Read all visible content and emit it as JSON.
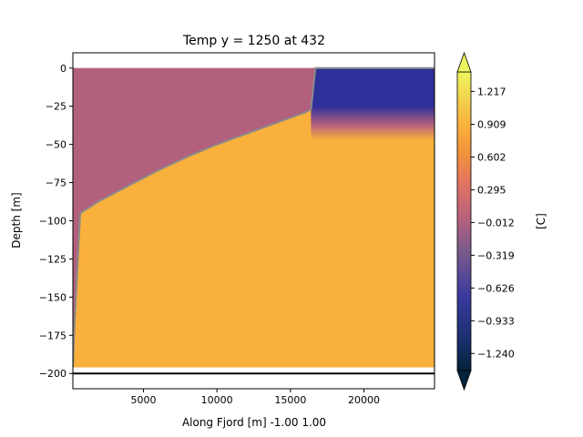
{
  "chart_data": {
    "type": "heatmap",
    "title": "Temp y = 1250 at 432",
    "xlabel": "Along Fjord [m] -1.00 1.00",
    "ylabel": "Depth [m]",
    "xlim": [
      200,
      24800
    ],
    "ylim": [
      -210,
      10
    ],
    "x_ticks": [
      5000,
      10000,
      15000,
      20000
    ],
    "x_tick_labels": [
      "5000",
      "10000",
      "15000",
      "20000"
    ],
    "y_ticks": [
      0,
      -25,
      -50,
      -75,
      -100,
      -125,
      -150,
      -175,
      -200
    ],
    "y_tick_labels": [
      "0",
      "−25",
      "−50",
      "−75",
      "−100",
      "−125",
      "−150",
      "−175",
      "−200"
    ],
    "field": {
      "x_range": [
        200,
        24800
      ],
      "depth_range": [
        0,
        -196
      ],
      "fresh_value": -0.1,
      "shelf_value": -0.93,
      "deep_value": 1.0,
      "thermocline_depth": -37,
      "thermocline_width": 10
    },
    "ice_profile": {
      "x": [
        200,
        300,
        700,
        2000,
        4000,
        6000,
        8000,
        10000,
        12000,
        14000,
        16000,
        16400,
        16700,
        24800
      ],
      "depth": [
        -196,
        -170,
        -95,
        -87,
        -77,
        -67,
        -58,
        -50,
        -43,
        -36,
        -29,
        -27,
        0,
        0
      ]
    },
    "bottom_line": -200,
    "colorbar": {
      "label": "[C]",
      "vmin": -1.4,
      "vmax": 1.4,
      "ticks": [
        1.217,
        0.909,
        0.602,
        0.295,
        -0.012,
        -0.319,
        -0.626,
        -0.933,
        -1.24
      ],
      "tick_labels": [
        "1.217",
        "0.909",
        "0.602",
        "0.295",
        "−0.012",
        "−0.319",
        "−0.626",
        "−0.933",
        "−1.240"
      ],
      "extend": "both",
      "colormap": "thermal"
    }
  },
  "colors": {
    "ice_line": "#8a8a8a",
    "bottom_line": "#000000",
    "fresh": "#b2607e",
    "deep": "#f9b03c",
    "shelf": "#2f2f9a"
  }
}
